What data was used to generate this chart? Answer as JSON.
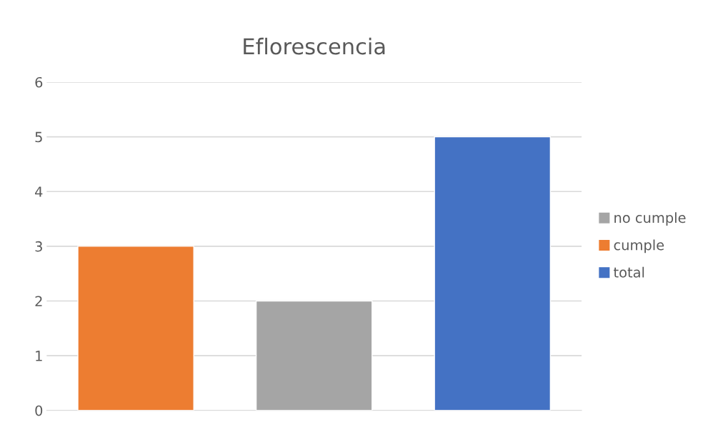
{
  "chart_data": {
    "type": "bar",
    "title": "Eflorescencia",
    "categories": [
      null,
      null,
      null
    ],
    "series": [
      {
        "name": "no cumple",
        "color": "#a5a5a5",
        "values": [
          null,
          2,
          null
        ]
      },
      {
        "name": "cumple",
        "color": "#ed7d31",
        "values": [
          3,
          null,
          null
        ]
      },
      {
        "name": "total",
        "color": "#4472c4",
        "values": [
          null,
          null,
          5
        ]
      }
    ],
    "ylim": [
      0,
      6
    ],
    "yticks": [
      0,
      1,
      2,
      3,
      4,
      5,
      6
    ],
    "grid": "y",
    "legend": "right",
    "tick_labels": "y"
  }
}
